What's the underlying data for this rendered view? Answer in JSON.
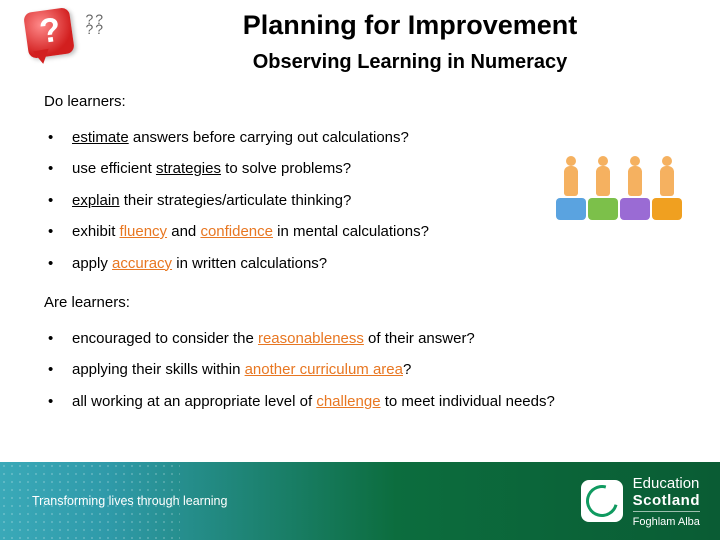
{
  "colors": {
    "highlight": "#e87722",
    "footer_gradient_from": "#3aa9b8",
    "footer_gradient_to": "#0a5c34",
    "text": "#000000"
  },
  "header": {
    "title": "Planning for Improvement",
    "subtitle": "Observing Learning in Numeracy"
  },
  "content": {
    "lead1": "Do learners:",
    "list1": {
      "i0": {
        "pre": "",
        "key": "estimate",
        "post": " answers before carrying out calculations?"
      },
      "i1": {
        "pre": "use efficient ",
        "key": "strategies",
        "post": " to solve problems?"
      },
      "i2": {
        "pre": "",
        "key": "explain",
        "post": " their strategies/articulate thinking?"
      },
      "i3": {
        "pre": "exhibit ",
        "key1": "fluency",
        "mid": " and ",
        "key2": "confidence",
        "post": " in mental calculations?"
      },
      "i4": {
        "pre": "apply ",
        "key": "accuracy",
        "post": " in written calculations?"
      }
    },
    "lead2": "Are learners:",
    "list2": {
      "i0": {
        "pre": "encouraged to consider the ",
        "key": "reasonableness",
        "post": " of their answer?"
      },
      "i1": {
        "pre": "applying their skills within ",
        "key": "another curriculum area",
        "post": "?"
      },
      "i2": {
        "pre": "all working at an appropriate level of ",
        "key": "challenge",
        "post": " to meet individual needs?"
      }
    }
  },
  "footer": {
    "tagline": "Transforming lives through learning",
    "logo_line1": "Education",
    "logo_line2": "Scotland",
    "logo_line3": "Foghlam Alba"
  }
}
